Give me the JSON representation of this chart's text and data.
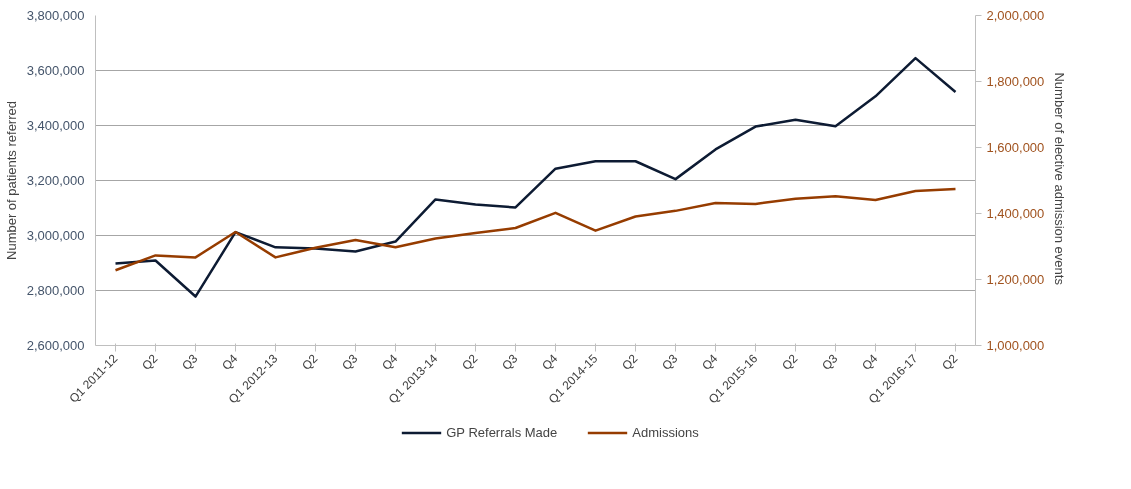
{
  "chart_data": {
    "type": "line",
    "categories": [
      "Q1 2011-12",
      "Q2",
      "Q3",
      "Q4",
      "Q1 2012-13",
      "Q2",
      "Q3",
      "Q4",
      "Q1 2013-14",
      "Q2",
      "Q3",
      "Q4",
      "Q1 2014-15",
      "Q2",
      "Q3",
      "Q4",
      "Q1 2015-16",
      "Q2",
      "Q3",
      "Q4",
      "Q1 2016-17",
      "Q2"
    ],
    "ylabel": "Number of patients referred",
    "y2label": "Number of elective  admission events",
    "ylim": [
      2600000,
      3800000
    ],
    "yticks": [
      {
        "value": 2600000,
        "label": "2,600,000"
      },
      {
        "value": 2800000,
        "label": "2,800,000"
      },
      {
        "value": 3000000,
        "label": "3,000,000"
      },
      {
        "value": 3200000,
        "label": "3,200,000"
      },
      {
        "value": 3400000,
        "label": "3,400,000"
      },
      {
        "value": 3600000,
        "label": "3,600,000"
      },
      {
        "value": 3800000,
        "label": "3,800,000"
      }
    ],
    "y2lim": [
      1000000,
      2000000
    ],
    "y2ticks": [
      {
        "value": 1000000,
        "label": "1,000,000"
      },
      {
        "value": 1200000,
        "label": "1,200,000"
      },
      {
        "value": 1400000,
        "label": "1,400,000"
      },
      {
        "value": 1600000,
        "label": "1,600,000"
      },
      {
        "value": 1800000,
        "label": "1,800,000"
      },
      {
        "value": 2000000,
        "label": "2,000,000"
      }
    ],
    "series": [
      {
        "name": "GP Referrals Made",
        "color": "#0d1b33",
        "values": [
          2898000,
          2909000,
          2778000,
          3012000,
          2957000,
          2953000,
          2942000,
          2978000,
          3131000,
          3113000,
          3102000,
          3243000,
          3270000,
          3270000,
          3205000,
          3313000,
          3396000,
          3421000,
          3397000,
          3506000,
          3645000,
          3522000
        ]
      },
      {
        "name": "Admissions",
        "color": "#963c00",
        "axis": "y2",
        "values": [
          1228000,
          1273000,
          1267000,
          1344000,
          1267000,
          1296000,
          1320000,
          1298000,
          1324000,
          1341000,
          1356000,
          1402000,
          1348000,
          1391000,
          1408000,
          1432000,
          1429000,
          1445000,
          1452000,
          1441000,
          1468000,
          1474000
        ]
      }
    ],
    "grid": "y",
    "legend": "bottom",
    "marker": "none",
    "line_style": "solid"
  }
}
